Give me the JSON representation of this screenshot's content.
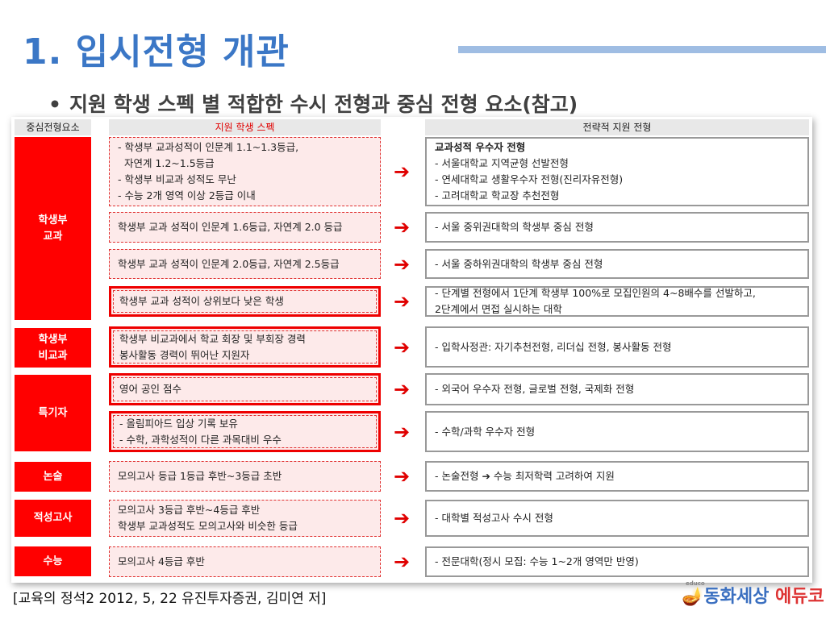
{
  "title": "1. 입시전형 개관",
  "subtitle": "지원 학생 스펙 별 적합한 수시 전형과 중심 전형 요소(참고)",
  "table": {
    "headers": {
      "category": "중심전형요소",
      "spec": "지원 학생 스펙",
      "strategy": "전략적 지원 전형"
    },
    "categories": [
      {
        "label": [
          "학생부",
          "교과"
        ]
      },
      {
        "label": [
          "학생부",
          "비교과"
        ]
      },
      {
        "label": [
          "특기자"
        ]
      },
      {
        "label": [
          "논술"
        ]
      },
      {
        "label": [
          "적성고사"
        ]
      },
      {
        "label": [
          "수능"
        ]
      }
    ],
    "rows": [
      {
        "spec": [
          "- 학생부 교과성적이 인문계 1.1~1.3등급,",
          "  자연계 1.2~1.5등급",
          "- 학생부 비교과 성적도 무난",
          "- 수능 2개 영역 이상 2등급 이내"
        ],
        "strategy_title": "교과성적 우수자 전형",
        "strategy": [
          "- 서울대학교 지역균형 선발전형",
          "- 연세대학교 생활우수자 전형(진리자유전형)",
          "- 고려대학교 학교장 추천전형"
        ],
        "highlighted": false
      },
      {
        "spec": [
          "학생부 교과 성적이 인문계 1.6등급, 자연계 2.0 등급"
        ],
        "strategy": [
          "- 서울 중위권대학의 학생부 중심 전형"
        ],
        "highlighted": false
      },
      {
        "spec": [
          "학생부 교과 성적이 인문계 2.0등급, 자연계 2.5등급"
        ],
        "strategy": [
          "- 서울 중하위권대학의 학생부 중심 전형"
        ],
        "highlighted": false
      },
      {
        "spec": [
          "학생부 교과 성적이 상위보다 낮은 학생"
        ],
        "strategy": [
          "- 단계별 전형에서 1단계 학생부 100%로 모집인원의 4~8배수를 선발하고,",
          "2단계에서 면접 실시하는 대학"
        ],
        "highlighted": true
      },
      {
        "spec": [
          "학생부 비교과에서 학교 회장 및 부회장 경력",
          "봉사활동 경력이 뛰어난 지원자"
        ],
        "strategy": [
          "- 입학사정관: 자기추천전형, 리더십 전형, 봉사활동 전형"
        ],
        "highlighted": true
      },
      {
        "spec": [
          "영어 공인 점수"
        ],
        "strategy": [
          "- 외국어 우수자 전형, 글로벌 전형, 국제화 전형"
        ],
        "highlighted": true
      },
      {
        "spec": [
          "- 올림피아드 입상 기록 보유",
          "- 수학, 과학성적이 다른 과목대비 우수"
        ],
        "strategy": [
          "- 수학/과학 우수자 전형"
        ],
        "highlighted": true
      },
      {
        "spec": [
          "모의고사 등급 1등급 후반~3등급 초반"
        ],
        "strategy": [
          "- 논술전형 ➔ 수능 최저학력 고려하여 지원"
        ],
        "highlighted": false
      },
      {
        "spec": [
          "모의고사 3등급 후반~4등급 후반",
          "학생부 교과성적도 모의고사와 비슷한 등급"
        ],
        "strategy": [
          "- 대학별 적성고사 수시 전형"
        ],
        "highlighted": false
      },
      {
        "spec": [
          "모의고사 4등급 후반"
        ],
        "strategy": [
          "- 전문대학(정시 모집: 수능 1~2개 영역만 반영)"
        ],
        "highlighted": false
      }
    ],
    "arrow_icon": "right-arrow-icon",
    "arrow_glyph": "➔"
  },
  "footer": "[교육의 정석2  2012, 5, 22 유진투자증권, 김미연 저]",
  "logo": {
    "small": "educo",
    "main": "동화세상",
    "accent": "에듀코"
  },
  "colors": {
    "title": "#3b77c6",
    "category": "#ff0000",
    "spec_fill": "#fdeaea",
    "arrow": "#e00000"
  }
}
